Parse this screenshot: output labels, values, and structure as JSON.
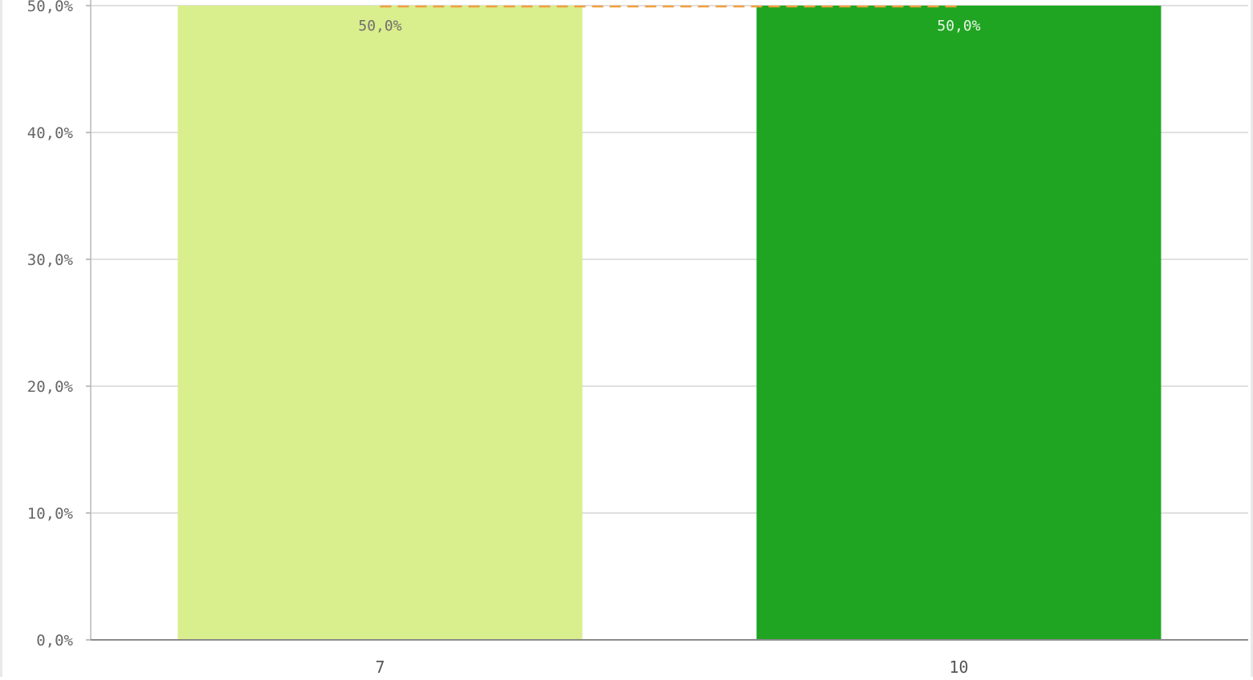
{
  "chart_data": {
    "type": "bar",
    "categories": [
      "7",
      "10"
    ],
    "values": [
      50.0,
      50.0
    ],
    "data_labels": [
      "50,0%",
      "50,0%"
    ],
    "colors": [
      "#d9ee8c",
      "#1fa521"
    ],
    "data_label_colors": [
      "#6f6f6f",
      "#e8f5e8"
    ],
    "ylim": [
      0,
      50
    ],
    "yticks": [
      0,
      10,
      20,
      30,
      40,
      50
    ],
    "ytick_labels": [
      "0,0%",
      "10,0%",
      "20,0%",
      "30,0%",
      "40,0%",
      "50,0%"
    ],
    "reference_line": {
      "value": 50.0,
      "style": "dashed",
      "color": "#f0a040"
    },
    "title": "",
    "xlabel": "",
    "ylabel": "",
    "grid": true,
    "legend": "none"
  }
}
